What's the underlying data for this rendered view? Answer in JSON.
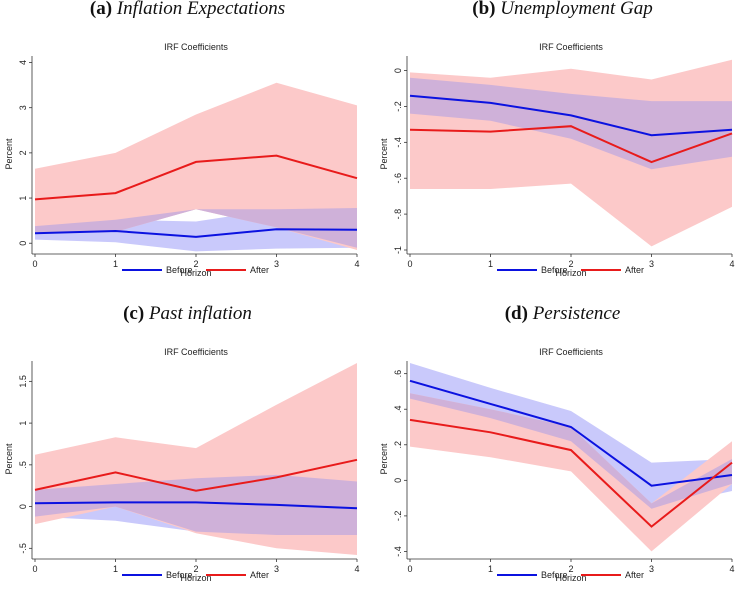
{
  "colors": {
    "before": "#0b12e0",
    "after": "#e81b1b",
    "before_band": "#c9c9fb",
    "after_band": "#fcc9c9",
    "overlap_band": "#cfb1d9"
  },
  "chart_data": [
    {
      "type": "line",
      "panel_label": "(a)",
      "panel_name": "Inflation Expectations",
      "title": "IRF Coefficients",
      "xlabel": "Horizon",
      "ylabel": "Percent",
      "x": [
        0,
        1,
        2,
        3,
        4
      ],
      "xlim": [
        0,
        4
      ],
      "ylim": [
        -0.15,
        4.1
      ],
      "yticks": [
        0,
        1,
        2,
        3,
        4
      ],
      "ytick_labels": [
        "0",
        "1",
        "2",
        "3",
        "4"
      ],
      "series": [
        {
          "name": "Before",
          "values": [
            0.22,
            0.27,
            0.14,
            0.31,
            0.3
          ],
          "lower": [
            0.08,
            0.02,
            -0.18,
            -0.12,
            -0.1
          ],
          "upper": [
            0.38,
            0.52,
            0.48,
            0.75,
            0.78
          ]
        },
        {
          "name": "After",
          "values": [
            0.97,
            1.11,
            1.8,
            1.94,
            1.44
          ],
          "lower": [
            0.22,
            0.25,
            0.75,
            0.35,
            -0.15
          ],
          "upper": [
            1.65,
            2.0,
            2.85,
            3.55,
            3.05
          ]
        }
      ]
    },
    {
      "type": "line",
      "panel_label": "(b)",
      "panel_name": "Unemployment Gap",
      "title": "IRF Coefficients",
      "xlabel": "Horizon",
      "ylabel": "Percent",
      "x": [
        0,
        1,
        2,
        3,
        4
      ],
      "xlim": [
        0,
        4
      ],
      "ylim": [
        -1.0,
        0.07
      ],
      "yticks": [
        0,
        -0.2,
        -0.4,
        -0.6,
        -0.8,
        -1
      ],
      "ytick_labels": [
        "0",
        "-.2",
        "-.4",
        "-.6",
        "-.8",
        "-1"
      ],
      "series": [
        {
          "name": "Before",
          "values": [
            -0.14,
            -0.18,
            -0.25,
            -0.36,
            -0.33
          ],
          "lower": [
            -0.24,
            -0.28,
            -0.38,
            -0.55,
            -0.48
          ],
          "upper": [
            -0.04,
            -0.08,
            -0.13,
            -0.17,
            -0.17
          ]
        },
        {
          "name": "After",
          "values": [
            -0.33,
            -0.34,
            -0.31,
            -0.51,
            -0.35
          ],
          "lower": [
            -0.66,
            -0.66,
            -0.63,
            -0.98,
            -0.76
          ],
          "upper": [
            -0.01,
            -0.04,
            0.01,
            -0.05,
            0.06
          ]
        }
      ]
    },
    {
      "type": "line",
      "panel_label": "(c)",
      "panel_name": "Past inflation",
      "title": "IRF Coefficients",
      "xlabel": "Horizon",
      "ylabel": "Percent",
      "x": [
        0,
        1,
        2,
        3,
        4
      ],
      "xlim": [
        0,
        4
      ],
      "ylim": [
        -0.58,
        1.72
      ],
      "yticks": [
        -0.5,
        0,
        0.5,
        1,
        1.5
      ],
      "ytick_labels": [
        "-.5",
        "0",
        ".5",
        "1",
        "1.5"
      ],
      "series": [
        {
          "name": "Before",
          "values": [
            0.04,
            0.05,
            0.05,
            0.02,
            -0.02
          ],
          "lower": [
            -0.12,
            -0.17,
            -0.3,
            -0.34,
            -0.34
          ],
          "upper": [
            0.2,
            0.27,
            0.34,
            0.38,
            0.3
          ]
        },
        {
          "name": "After",
          "values": [
            0.2,
            0.41,
            0.19,
            0.35,
            0.56
          ],
          "lower": [
            -0.21,
            0.0,
            -0.32,
            -0.5,
            -0.58
          ],
          "upper": [
            0.62,
            0.83,
            0.7,
            1.22,
            1.72
          ]
        }
      ]
    },
    {
      "type": "line",
      "panel_label": "(d)",
      "panel_name": "Persistence",
      "title": "IRF Coefficients",
      "xlabel": "Horizon",
      "ylabel": "Percent",
      "x": [
        0,
        1,
        2,
        3,
        4
      ],
      "xlim": [
        0,
        4
      ],
      "ylim": [
        -0.42,
        0.66
      ],
      "yticks": [
        -0.4,
        -0.2,
        0,
        0.2,
        0.4,
        0.6
      ],
      "ytick_labels": [
        "-.4",
        "-.2",
        "0",
        ".2",
        ".4",
        ".6"
      ],
      "series": [
        {
          "name": "Before",
          "values": [
            0.56,
            0.43,
            0.3,
            -0.03,
            0.03
          ],
          "lower": [
            0.46,
            0.35,
            0.22,
            -0.16,
            -0.06
          ],
          "upper": [
            0.66,
            0.52,
            0.39,
            0.1,
            0.12
          ]
        },
        {
          "name": "After",
          "values": [
            0.34,
            0.27,
            0.17,
            -0.26,
            0.1
          ],
          "lower": [
            0.19,
            0.13,
            0.05,
            -0.4,
            -0.02
          ],
          "upper": [
            0.49,
            0.4,
            0.3,
            -0.13,
            0.22
          ]
        }
      ]
    }
  ]
}
